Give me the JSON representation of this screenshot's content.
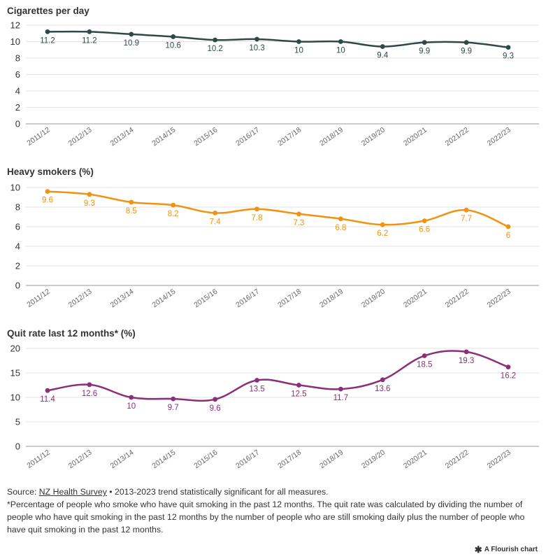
{
  "chart_data": [
    {
      "type": "line",
      "title": "Cigarettes per day",
      "color": "#2f4a46",
      "categories": [
        "2011/12",
        "2012/13",
        "2013/14",
        "2014/15",
        "2015/16",
        "2016/17",
        "2017/18",
        "2018/19",
        "2019/20",
        "2020/21",
        "2021/22",
        "2022/23"
      ],
      "values": [
        11.2,
        11.2,
        10.9,
        10.6,
        10.2,
        10.3,
        10,
        10,
        9.4,
        9.9,
        9.9,
        9.3
      ],
      "yticks": [
        0,
        2,
        4,
        6,
        8,
        10,
        12
      ],
      "ylim": [
        0,
        12
      ],
      "grid": true
    },
    {
      "type": "line",
      "title": "Heavy smokers (%)",
      "color": "#f0930e",
      "categories": [
        "2011/12",
        "2012/13",
        "2013/14",
        "2014/15",
        "2015/16",
        "2016/17",
        "2017/18",
        "2018/19",
        "2019/20",
        "2020/21",
        "2021/22",
        "2022/23"
      ],
      "values": [
        9.6,
        9.3,
        8.5,
        8.2,
        7.4,
        7.8,
        7.3,
        6.8,
        6.2,
        6.6,
        7.7,
        6
      ],
      "yticks": [
        0,
        2,
        4,
        6,
        8,
        10
      ],
      "ylim": [
        0,
        10
      ],
      "grid": true
    },
    {
      "type": "line",
      "title": "Quit rate last 12 months* (%)",
      "color": "#8b2f78",
      "categories": [
        "2011/12",
        "2012/13",
        "2013/14",
        "2014/15",
        "2015/16",
        "2016/17",
        "2017/18",
        "2018/19",
        "2019/20",
        "2020/21",
        "2021/22",
        "2022/23"
      ],
      "values": [
        11.4,
        12.6,
        10,
        9.7,
        9.6,
        13.5,
        12.5,
        11.7,
        13.6,
        18.5,
        19.3,
        16.2
      ],
      "yticks": [
        0,
        5,
        10,
        15,
        20
      ],
      "ylim": [
        0,
        20
      ],
      "grid": true
    }
  ],
  "footer": {
    "source_prefix": "Source: ",
    "source_link": "NZ Health Survey",
    "source_suffix": " • 2013-2023 trend statistically significant for all measures.",
    "note": "*Percentage of people who smoke who have quit smoking in the past 12 months. The quit rate was calculated by dividing the number of people who have quit smoking in the past 12 months by the number of people who are still smoking daily plus the number of people who have quit smoking in the past 12 months."
  },
  "credit": {
    "star": "✱",
    "label": "A Flourish chart"
  }
}
